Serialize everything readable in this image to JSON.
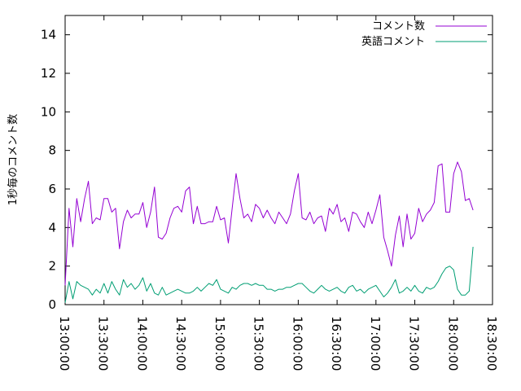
{
  "chart_data": {
    "type": "line",
    "title": "",
    "xlabel": "",
    "ylabel": "1秒毎のコメント数",
    "ylim": [
      0,
      15
    ],
    "yticks": [
      0,
      2,
      4,
      6,
      8,
      10,
      12,
      14
    ],
    "xlim": [
      "13:00:00",
      "18:30:00"
    ],
    "xticks": [
      "13:00:00",
      "13:30:00",
      "14:00:00",
      "14:30:00",
      "15:00:00",
      "15:30:00",
      "16:00:00",
      "16:30:00",
      "17:00:00",
      "17:30:00",
      "18:00:00",
      "18:30:00"
    ],
    "grid": false,
    "legend": "top-right",
    "sample_interval_minutes": 3,
    "series": [
      {
        "name": "コメント数",
        "color": "#9400d3",
        "values": [
          1.0,
          5.0,
          3.0,
          5.5,
          4.3,
          5.5,
          6.4,
          4.2,
          4.5,
          4.4,
          5.5,
          5.5,
          4.8,
          5.0,
          2.9,
          4.3,
          4.9,
          4.5,
          4.7,
          4.7,
          5.3,
          4.0,
          4.8,
          6.1,
          3.5,
          3.4,
          3.7,
          4.5,
          5.0,
          5.1,
          4.8,
          5.9,
          6.1,
          4.2,
          5.1,
          4.2,
          4.2,
          4.3,
          4.3,
          5.1,
          4.4,
          4.5,
          3.2,
          5.0,
          6.8,
          5.5,
          4.5,
          4.7,
          4.3,
          5.2,
          5.0,
          4.5,
          4.9,
          4.5,
          4.2,
          4.8,
          4.5,
          4.2,
          4.7,
          5.9,
          6.8,
          4.5,
          4.4,
          4.8,
          4.2,
          4.5,
          4.6,
          3.8,
          5.0,
          4.7,
          5.2,
          4.3,
          4.5,
          3.8,
          4.8,
          4.7,
          4.3,
          4.0,
          4.8,
          4.2,
          4.9,
          5.7,
          3.5,
          2.8,
          2.0,
          3.6,
          4.6,
          3.0,
          4.7,
          3.4,
          3.7,
          5.0,
          4.3,
          4.7,
          4.9,
          5.3,
          7.2,
          7.3,
          4.8,
          4.8,
          6.8,
          7.4,
          6.9,
          5.4,
          5.5,
          4.9
        ]
      },
      {
        "name": "英語コメント",
        "color": "#009e73",
        "values": [
          0.1,
          1.2,
          0.3,
          1.2,
          1.0,
          0.9,
          0.8,
          0.5,
          0.8,
          0.6,
          1.1,
          0.6,
          1.2,
          0.8,
          0.5,
          1.3,
          0.9,
          1.1,
          0.8,
          1.0,
          1.4,
          0.7,
          1.1,
          0.6,
          0.5,
          0.9,
          0.5,
          0.6,
          0.7,
          0.8,
          0.7,
          0.6,
          0.6,
          0.7,
          0.9,
          0.7,
          0.9,
          1.1,
          1.0,
          1.3,
          0.8,
          0.7,
          0.6,
          0.9,
          0.8,
          1.0,
          1.1,
          1.1,
          1.0,
          1.1,
          1.0,
          1.0,
          0.8,
          0.8,
          0.7,
          0.8,
          0.8,
          0.9,
          0.9,
          1.0,
          1.1,
          1.1,
          0.9,
          0.7,
          0.6,
          0.8,
          1.0,
          0.8,
          0.7,
          0.8,
          0.9,
          0.7,
          0.6,
          0.9,
          1.0,
          0.7,
          0.8,
          0.6,
          0.8,
          0.9,
          1.0,
          0.7,
          0.4,
          0.6,
          0.9,
          1.3,
          0.6,
          0.7,
          0.9,
          0.7,
          1.0,
          0.7,
          0.6,
          0.9,
          0.8,
          0.9,
          1.2,
          1.6,
          1.9,
          2.0,
          1.8,
          0.8,
          0.5,
          0.5,
          0.7,
          3.0
        ]
      }
    ]
  }
}
